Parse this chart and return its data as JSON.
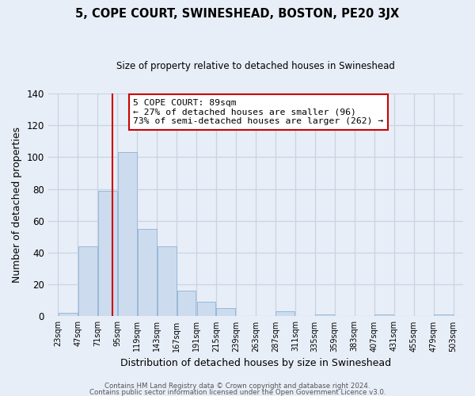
{
  "title": "5, COPE COURT, SWINESHEAD, BOSTON, PE20 3JX",
  "subtitle": "Size of property relative to detached houses in Swineshead",
  "xlabel": "Distribution of detached houses by size in Swineshead",
  "ylabel": "Number of detached properties",
  "bar_color": "#ccdcee",
  "bar_edge_color": "#99b8d8",
  "bins": [
    23,
    47,
    71,
    95,
    119,
    143,
    167,
    191,
    215,
    239,
    263,
    287,
    311,
    335,
    359,
    383,
    407,
    431,
    455,
    479,
    503
  ],
  "values": [
    2,
    44,
    79,
    103,
    55,
    44,
    16,
    9,
    5,
    0,
    0,
    3,
    0,
    1,
    0,
    0,
    1,
    0,
    0,
    1
  ],
  "tick_labels": [
    "23sqm",
    "47sqm",
    "71sqm",
    "95sqm",
    "119sqm",
    "143sqm",
    "167sqm",
    "191sqm",
    "215sqm",
    "239sqm",
    "263sqm",
    "287sqm",
    "311sqm",
    "335sqm",
    "359sqm",
    "383sqm",
    "407sqm",
    "431sqm",
    "455sqm",
    "479sqm",
    "503sqm"
  ],
  "vline_x": 89,
  "vline_color": "#cc0000",
  "annotation_line1": "5 COPE COURT: 89sqm",
  "annotation_line2": "← 27% of detached houses are smaller (96)",
  "annotation_line3": "73% of semi-detached houses are larger (262) →",
  "ylim": [
    0,
    140
  ],
  "yticks": [
    0,
    20,
    40,
    60,
    80,
    100,
    120,
    140
  ],
  "footer1": "Contains HM Land Registry data © Crown copyright and database right 2024.",
  "footer2": "Contains public sector information licensed under the Open Government Licence v3.0.",
  "background_color": "#e8eef7",
  "plot_bg_color": "#e8eef7",
  "grid_color": "#c8d4e4",
  "title_fontsize": 10.5,
  "subtitle_fontsize": 8.5
}
